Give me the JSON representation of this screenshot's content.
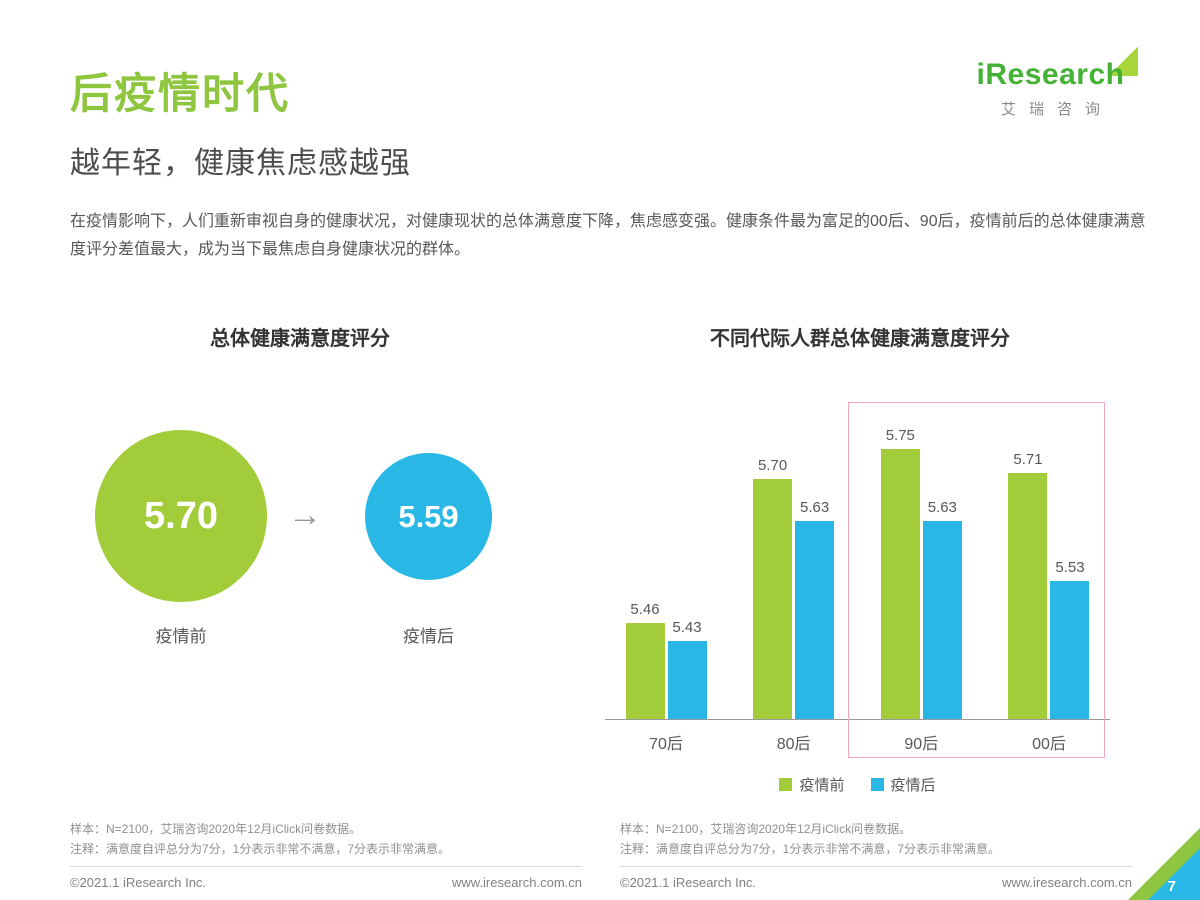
{
  "page": {
    "title": "后疫情时代",
    "subtitle": "越年轻，健康焦虑感越强",
    "intro": "在疫情影响下，人们重新审视自身的健康状况，对健康现状的总体满意度下降，焦虑感变强。健康条件最为富足的00后、90后，疫情前后的总体健康满意度评分差值最大，成为当下最焦虑自身健康状况的群体。",
    "page_number": "7"
  },
  "logo": {
    "brand": "iResearch",
    "brand_cn": "艾瑞咨询"
  },
  "colors": {
    "green": "#a3cc3a",
    "blue": "#29b8e6",
    "pink": "#f3a5ba",
    "title_green": "#8ec63f"
  },
  "left_chart": {
    "title": "总体健康满意度评分",
    "before": {
      "label": "疫情前",
      "value": "5.70"
    },
    "after": {
      "label": "疫情后",
      "value": "5.59"
    },
    "arrow": "→"
  },
  "right_chart": {
    "title": "不同代际人群总体健康满意度评分",
    "legend": [
      {
        "label": "疫情前",
        "color": "#a3cc3a"
      },
      {
        "label": "疫情后",
        "color": "#29b8e6"
      }
    ]
  },
  "chart_data": [
    {
      "type": "comparison-circles",
      "title": "总体健康满意度评分",
      "categories": [
        "疫情前",
        "疫情后"
      ],
      "values": [
        5.7,
        5.59
      ]
    },
    {
      "type": "bar",
      "title": "不同代际人群总体健康满意度评分",
      "categories": [
        "70后",
        "80后",
        "90后",
        "00后"
      ],
      "series": [
        {
          "name": "疫情前",
          "values": [
            5.46,
            5.7,
            5.75,
            5.71
          ],
          "color": "#a3cc3a"
        },
        {
          "name": "疫情后",
          "values": [
            5.43,
            5.63,
            5.63,
            5.53
          ],
          "color": "#29b8e6"
        }
      ],
      "ylim": [
        5.3,
        5.8
      ],
      "legend_position": "bottom",
      "grid": false,
      "highlight_groups": [
        "90后",
        "00后"
      ]
    }
  ],
  "footnotes": {
    "left": [
      "样本：N=2100，艾瑞咨询2020年12月iClick问卷数据。",
      "注释：满意度自评总分为7分，1分表示非常不满意，7分表示非常满意。"
    ],
    "right": [
      "样本：N=2100，艾瑞咨询2020年12月iClick问卷数据。",
      "注释：满意度自评总分为7分，1分表示非常不满意，7分表示非常满意。"
    ]
  },
  "footer": {
    "left_copyright": "©2021.1 iResearch Inc.",
    "left_url": "www.iresearch.com.cn",
    "right_copyright": "©2021.1 iResearch Inc.",
    "right_url": "www.iresearch.com.cn"
  }
}
